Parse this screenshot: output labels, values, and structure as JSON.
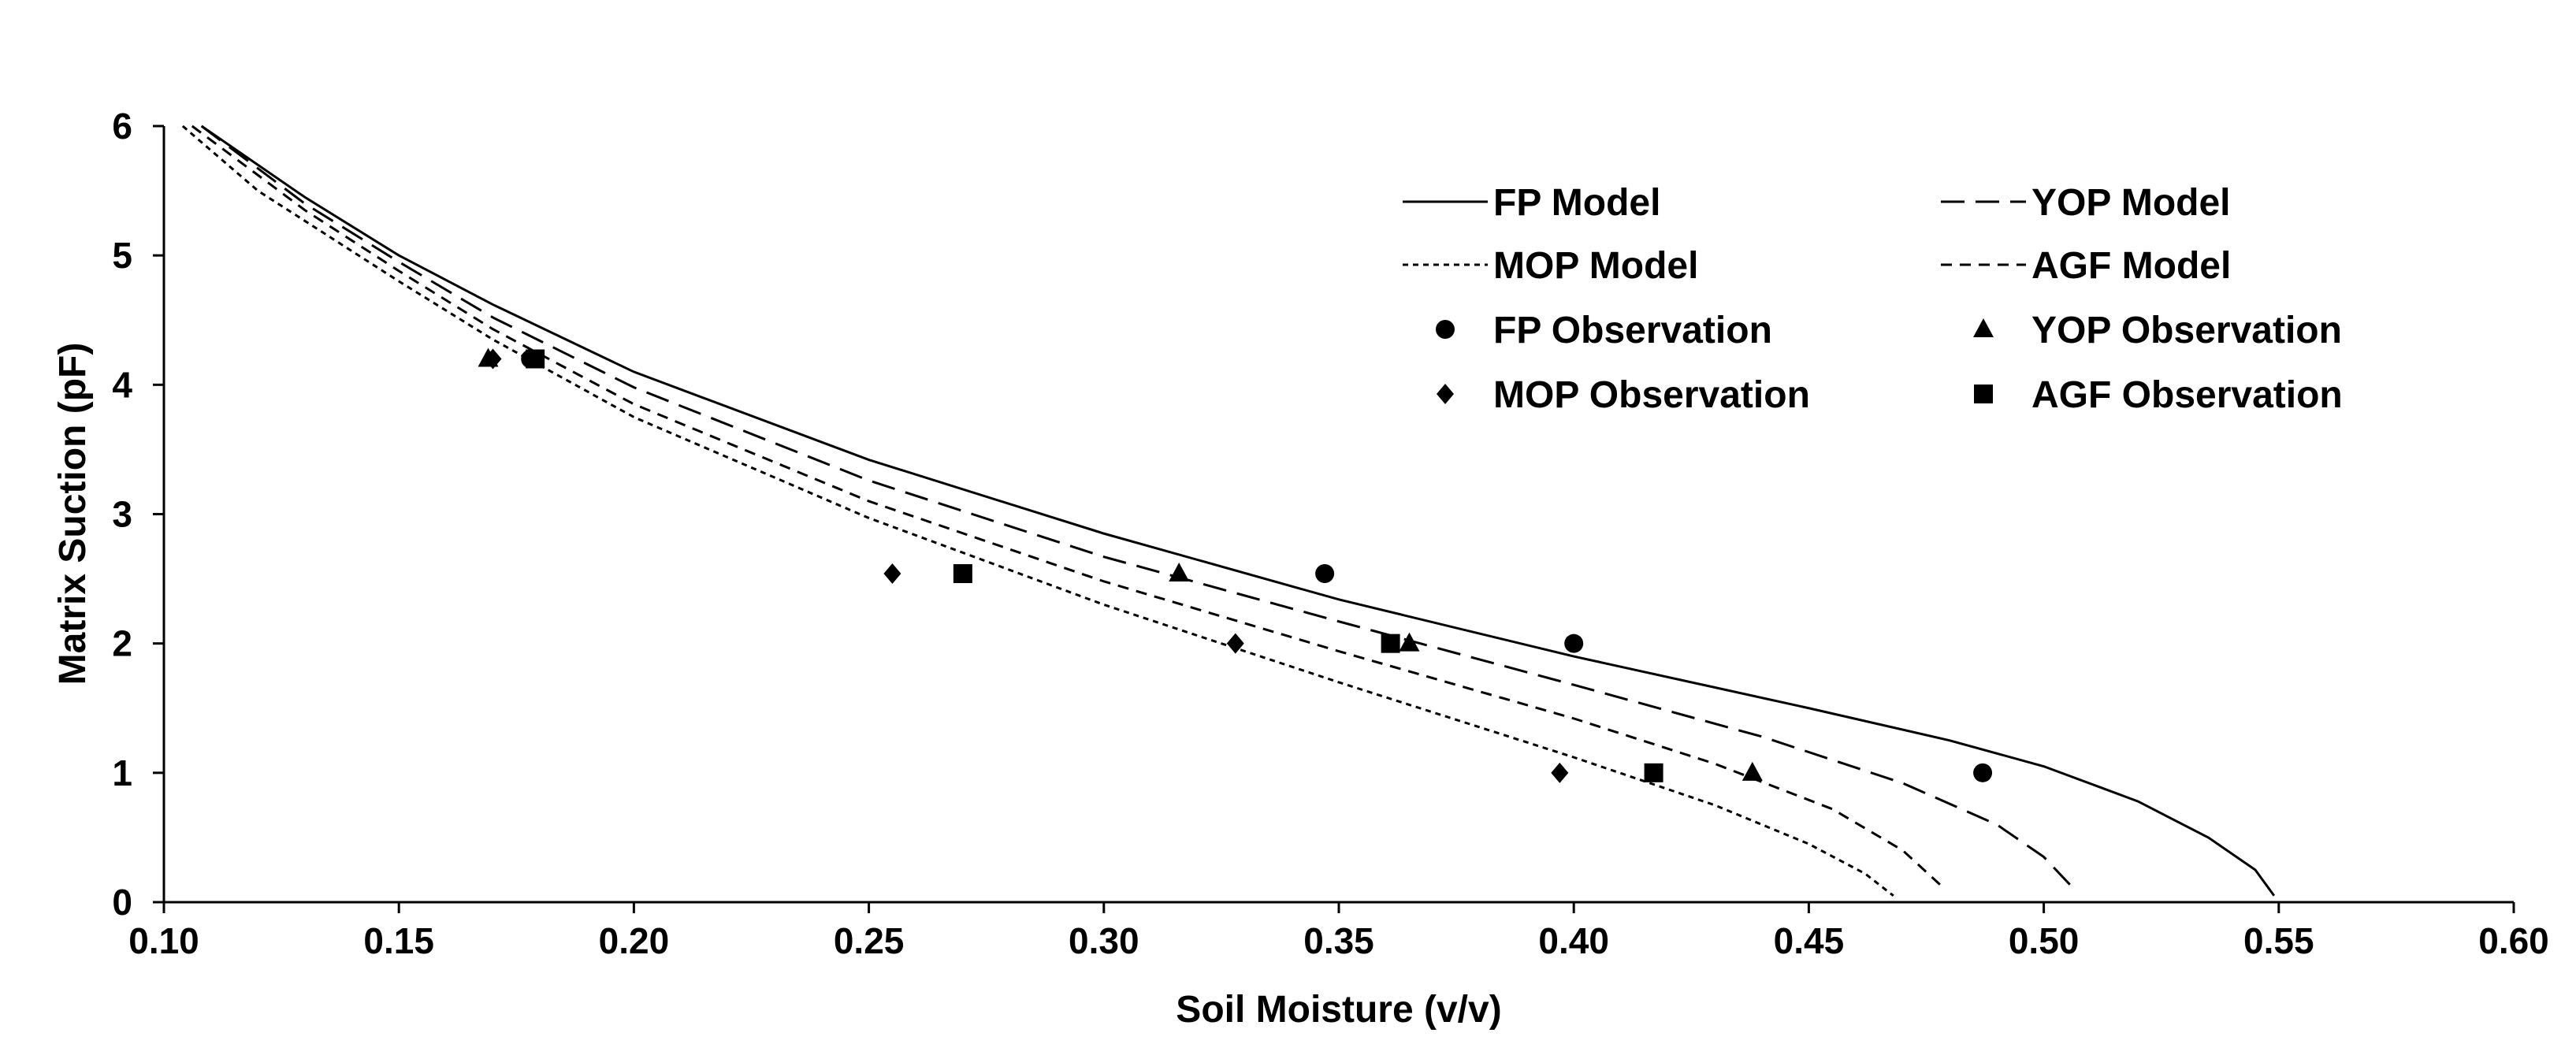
{
  "chart_data": {
    "type": "line",
    "title": "",
    "xlabel": "Soil Moisture (v/v)",
    "ylabel": "Matrix Suction (pF)",
    "xlim": [
      0.1,
      0.6
    ],
    "ylim": [
      0,
      6
    ],
    "xticks": [
      "0.10",
      "0.15",
      "0.20",
      "0.25",
      "0.30",
      "0.35",
      "0.40",
      "0.45",
      "0.50",
      "0.55",
      "0.60"
    ],
    "yticks": [
      "0",
      "1",
      "2",
      "3",
      "4",
      "5",
      "6"
    ],
    "grid": false,
    "legend_position": "top-right",
    "series": [
      {
        "name": "FP Model",
        "kind": "line",
        "dash": "solid",
        "x": [
          0.108,
          0.13,
          0.15,
          0.17,
          0.2,
          0.25,
          0.3,
          0.35,
          0.4,
          0.45,
          0.48,
          0.5,
          0.52,
          0.535,
          0.545,
          0.549
        ],
        "y": [
          6.0,
          5.45,
          5.0,
          4.62,
          4.1,
          3.42,
          2.85,
          2.34,
          1.9,
          1.5,
          1.25,
          1.05,
          0.78,
          0.5,
          0.25,
          0.05
        ]
      },
      {
        "name": "YOP Model",
        "kind": "line",
        "dash": "long-dash",
        "x": [
          0.108,
          0.13,
          0.15,
          0.17,
          0.2,
          0.25,
          0.3,
          0.35,
          0.4,
          0.44,
          0.47,
          0.49,
          0.5,
          0.507
        ],
        "y": [
          6.0,
          5.4,
          4.95,
          4.52,
          3.98,
          3.26,
          2.67,
          2.17,
          1.68,
          1.28,
          0.92,
          0.6,
          0.35,
          0.08
        ]
      },
      {
        "name": "MOP Model",
        "kind": "line",
        "dash": "dotted",
        "x": [
          0.104,
          0.12,
          0.15,
          0.17,
          0.2,
          0.25,
          0.3,
          0.35,
          0.4,
          0.43,
          0.45,
          0.462,
          0.468
        ],
        "y": [
          6.0,
          5.5,
          4.8,
          4.35,
          3.75,
          2.97,
          2.3,
          1.7,
          1.12,
          0.75,
          0.45,
          0.22,
          0.05
        ]
      },
      {
        "name": "AGF Model",
        "kind": "line",
        "dash": "short-dash",
        "x": [
          0.106,
          0.13,
          0.15,
          0.17,
          0.2,
          0.25,
          0.3,
          0.35,
          0.4,
          0.43,
          0.455,
          0.47,
          0.479
        ],
        "y": [
          6.0,
          5.35,
          4.88,
          4.43,
          3.85,
          3.1,
          2.48,
          1.94,
          1.42,
          1.07,
          0.72,
          0.4,
          0.1
        ]
      },
      {
        "name": "FP Observation",
        "kind": "scatter",
        "marker": "circle",
        "x": [
          0.178,
          0.347,
          0.4,
          0.487
        ],
        "y": [
          4.2,
          2.54,
          2.0,
          1.0
        ]
      },
      {
        "name": "YOP Observation",
        "kind": "scatter",
        "marker": "triangle",
        "x": [
          0.169,
          0.316,
          0.365,
          0.438
        ],
        "y": [
          4.2,
          2.54,
          2.0,
          1.0
        ]
      },
      {
        "name": "MOP Observation",
        "kind": "scatter",
        "marker": "diamond",
        "x": [
          0.17,
          0.255,
          0.328,
          0.397
        ],
        "y": [
          4.2,
          2.54,
          2.0,
          1.0
        ]
      },
      {
        "name": "AGF Observation",
        "kind": "scatter",
        "marker": "square",
        "x": [
          0.179,
          0.27,
          0.361,
          0.417
        ],
        "y": [
          4.2,
          2.54,
          2.0,
          1.0
        ]
      }
    ]
  }
}
